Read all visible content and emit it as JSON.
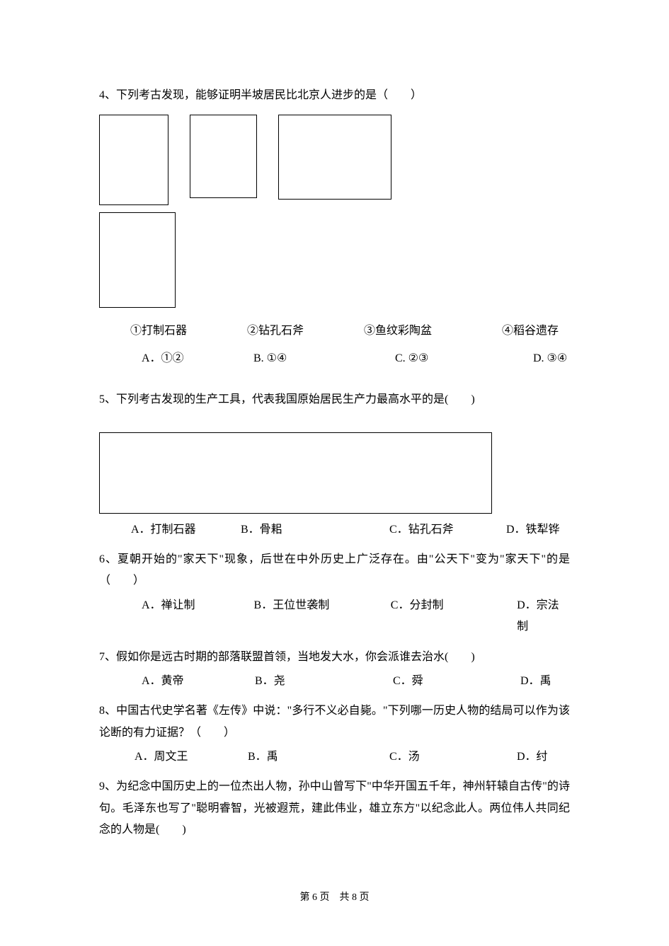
{
  "q4": {
    "text": "4、下列考古发现，能够证明半坡居民比北京人进步的是（　　）",
    "labels": [
      "①打制石器",
      "②钻孔石斧",
      "③鱼纹彩陶盆",
      "④稻谷遗存"
    ],
    "options": [
      "A．①②",
      "B.   ①④",
      "C.   ②③",
      "D.   ③④"
    ]
  },
  "q5": {
    "text": "5、下列考古发现的生产工具，代表我国原始居民生产力最高水平的是(　　)",
    "options": [
      "A．打制石器",
      "B．骨耜",
      "C．钻孔石斧",
      "D．铁犁铧"
    ]
  },
  "q6": {
    "text": "6、夏朝开始的\"家天下\"现象，后世在中外历史上广泛存在。由\"公天下\"变为\"家天下\"的是（　　）",
    "options": [
      "A．禅让制",
      "B．王位世袭制",
      "C．分封制",
      "D．宗法制"
    ]
  },
  "q7": {
    "text": "7、假如你是远古时期的部落联盟首领，当地发大水，你会派谁去治水(　　)",
    "options": [
      "A．黄帝",
      "B．尧",
      "C．舜",
      "D．禹"
    ]
  },
  "q8": {
    "text": "8、中国古代史学名著《左传》中说：\"多行不义必自毙。\"下列哪一历史人物的结局可以作为该论断的有力证据？（　　）",
    "options": [
      "A．周文王",
      "B．禹",
      "C．汤",
      "D．纣"
    ]
  },
  "q9": {
    "text": "9、为纪念中国历史上的一位杰出人物，孙中山曾写下\"中华开国五千年，神州轩辕自古传\"的诗句。毛泽东也写了\"聪明睿智，光被遐荒，建此伟业，雄立东方\"以纪念此人。两位伟人共同纪念的人物是(　　)"
  },
  "footer": "第 6 页　共 8 页"
}
